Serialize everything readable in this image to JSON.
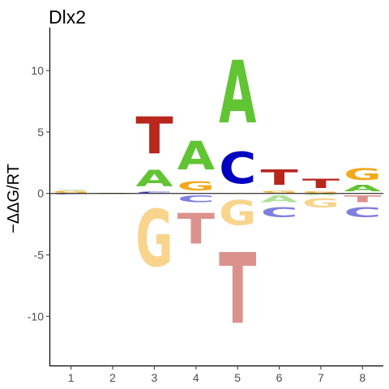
{
  "chart_data": {
    "type": "sequence-logo",
    "title": "Dlx2",
    "ylabel": "−ΔΔG/RT",
    "xlabel": "",
    "ylim": [
      -14,
      13.5
    ],
    "xlim": [
      0.5,
      8.5
    ],
    "y_ticks": [
      {
        "value": 10,
        "label": "10"
      },
      {
        "value": 5,
        "label": "5"
      },
      {
        "value": 0,
        "label": "0"
      },
      {
        "value": -5,
        "label": "-5"
      },
      {
        "value": -10,
        "label": "-10"
      }
    ],
    "x_ticks": [
      {
        "value": 1,
        "label": "1"
      },
      {
        "value": 2,
        "label": "2"
      },
      {
        "value": 3,
        "label": "3"
      },
      {
        "value": 4,
        "label": "4"
      },
      {
        "value": 5,
        "label": "5"
      },
      {
        "value": 6,
        "label": "6"
      },
      {
        "value": 7,
        "label": "7"
      },
      {
        "value": 8,
        "label": "8"
      }
    ],
    "colors": {
      "A": "#61c433",
      "C": "#0000c0",
      "G": "#f2a91c",
      "T": "#b8261c"
    },
    "negative_opacity": 0.5,
    "positions": [
      {
        "pos": 1,
        "letters": [
          {
            "base": "G",
            "y0": 0,
            "y1": 0.25
          },
          {
            "base": "A",
            "y0": 0.25,
            "y1": 0.33
          },
          {
            "base": "C",
            "y0": 0,
            "y1": -0.1
          }
        ]
      },
      {
        "pos": 2,
        "letters": [
          {
            "base": "A",
            "y0": 0,
            "y1": 0.08
          },
          {
            "base": "G",
            "y0": 0,
            "y1": -0.08
          }
        ]
      },
      {
        "pos": 3,
        "letters": [
          {
            "base": "C",
            "y0": 0,
            "y1": 0.15
          },
          {
            "base": "A",
            "y0": 0.15,
            "y1": 2.3
          },
          {
            "base": "T",
            "y0": 2.3,
            "y1": 7.1
          },
          {
            "base": "G",
            "y0": 0,
            "y1": -7.4
          }
        ]
      },
      {
        "pos": 4,
        "letters": [
          {
            "base": "G",
            "y0": 0,
            "y1": 1.2
          },
          {
            "base": "A",
            "y0": 1.2,
            "y1": 4.9
          },
          {
            "base": "C",
            "y0": 0,
            "y1": -0.9
          },
          {
            "base": "T",
            "y0": -0.9,
            "y1": -4.9
          }
        ]
      },
      {
        "pos": 5,
        "letters": [
          {
            "base": "C",
            "y0": 0,
            "y1": 4.1
          },
          {
            "base": "A",
            "y0": 4.1,
            "y1": 12.3
          },
          {
            "base": "G",
            "y0": 0,
            "y1": -3.2
          },
          {
            "base": "T",
            "y0": -3.2,
            "y1": -12.4
          }
        ]
      },
      {
        "pos": 6,
        "letters": [
          {
            "base": "G",
            "y0": 0,
            "y1": 0.3
          },
          {
            "base": "T",
            "y0": 0.3,
            "y1": 2.3
          },
          {
            "base": "A",
            "y0": 0,
            "y1": -0.9
          },
          {
            "base": "C",
            "y0": -0.9,
            "y1": -2.2
          }
        ]
      },
      {
        "pos": 7,
        "letters": [
          {
            "base": "G",
            "y0": 0,
            "y1": 0.2
          },
          {
            "base": "T",
            "y0": 0.2,
            "y1": 1.4
          },
          {
            "base": "A",
            "y0": 0,
            "y1": -0.2
          },
          {
            "base": "G",
            "y0": -0.2,
            "y1": -1.4
          }
        ]
      },
      {
        "pos": 8,
        "letters": [
          {
            "base": "A",
            "y0": 0,
            "y1": 0.8
          },
          {
            "base": "G",
            "y0": 0.8,
            "y1": 2.3
          },
          {
            "base": "T",
            "y0": 0,
            "y1": -0.9
          },
          {
            "base": "C",
            "y0": -0.9,
            "y1": -2.2
          }
        ]
      }
    ]
  }
}
